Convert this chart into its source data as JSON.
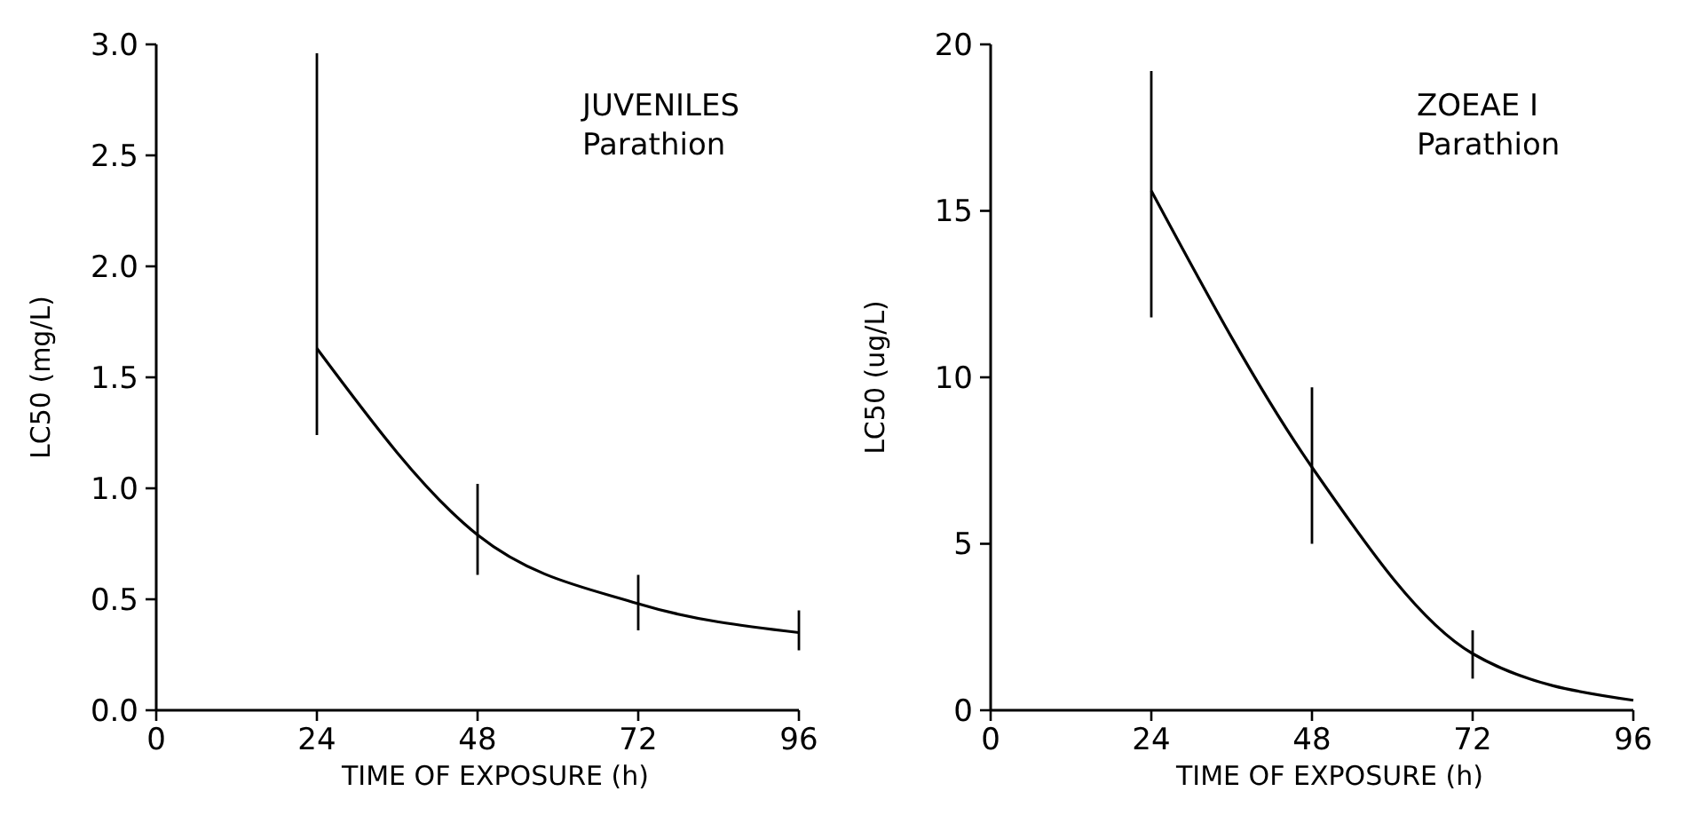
{
  "chart_data": [
    {
      "type": "line",
      "title": "JUVENILES",
      "subtitle": "Parathion",
      "xlabel": "TIME OF EXPOSURE (h)",
      "ylabel": "LC50 (mg/L)",
      "x": [
        24,
        48,
        72,
        96
      ],
      "xlim": [
        0,
        96
      ],
      "xticks": [
        0,
        24,
        48,
        72,
        96
      ],
      "ylim": [
        0,
        3.0
      ],
      "yticks": [
        {
          "value": 0,
          "label": "0.0"
        },
        0.5,
        {
          "value": 1,
          "label": "1.0"
        },
        1.5,
        {
          "value": 2,
          "label": "2.0"
        },
        2.5,
        {
          "value": 3,
          "label": "3.0"
        }
      ],
      "marker": "none",
      "line_style": "solid",
      "series": [
        {
          "color": "#000000",
          "values": [
            1.63,
            0.79,
            0.48,
            0.35
          ],
          "errors": [
            [
              1.24,
              2.96
            ],
            [
              0.61,
              1.02
            ],
            [
              0.36,
              0.61
            ],
            [
              0.27,
              0.45
            ]
          ]
        }
      ]
    },
    {
      "type": "line",
      "title": "ZOEAE I",
      "subtitle": "Parathion",
      "xlabel": "TIME OF EXPOSURE (h)",
      "ylabel": "LC50 (ug/L)",
      "x": [
        24,
        48,
        72,
        96
      ],
      "xlim": [
        0,
        96
      ],
      "xticks": [
        0,
        24,
        48,
        72,
        96
      ],
      "ylim": [
        0,
        20
      ],
      "yticks": [
        0,
        5,
        10,
        15,
        20
      ],
      "marker": "none",
      "line_style": "solid",
      "series": [
        {
          "color": "#000000",
          "values": [
            15.6,
            7.3,
            1.7,
            0.3
          ],
          "errors": [
            [
              11.8,
              19.2
            ],
            [
              5.0,
              9.7
            ],
            [
              0.95,
              2.4
            ],
            null
          ]
        }
      ]
    }
  ]
}
